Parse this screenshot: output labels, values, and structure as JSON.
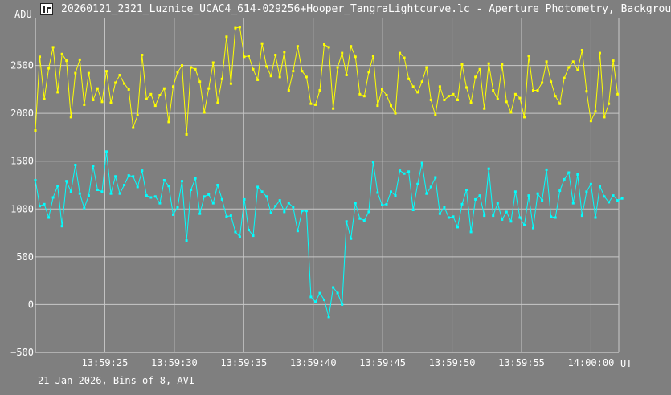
{
  "window": {
    "title": "20260121_2321_Luznice_UCAC4_614-029256+Hooper_TangraLightcurve.lc - Aperture Photometry, Backgrou",
    "icon": "lightcurve-app-icon"
  },
  "footer": {
    "text": "21 Jan 2026, Bins of 8, AVI"
  },
  "chart_data": {
    "type": "line",
    "yunit": "ADU",
    "xunit": "UT",
    "ylim": [
      -500,
      3000
    ],
    "xlim_seconds": [
      20.0,
      62.0
    ],
    "yticks": [
      {
        "value": -500,
        "label": "−500"
      },
      {
        "value": 0,
        "label": "0"
      },
      {
        "value": 500,
        "label": "500"
      },
      {
        "value": 1000,
        "label": "1000"
      },
      {
        "value": 1500,
        "label": "1500"
      },
      {
        "value": 2000,
        "label": "2000"
      },
      {
        "value": 2500,
        "label": "2500"
      }
    ],
    "xticks": [
      {
        "label": "13:59:25",
        "t": "13:59:25"
      },
      {
        "label": "13:59:30",
        "t": "13:59:30"
      },
      {
        "label": "13:59:35",
        "t": "13:59:35"
      },
      {
        "label": "13:59:40",
        "t": "13:59:40"
      },
      {
        "label": "13:59:45",
        "t": "13:59:45"
      },
      {
        "label": "13:59:50",
        "t": "13:59:50"
      },
      {
        "label": "13:59:55",
        "t": "13:59:55"
      },
      {
        "label": "14:00:00",
        "t": "14:00:00"
      }
    ],
    "grid": true,
    "series": [
      {
        "color": "#ffff00",
        "start_time": "13:59:20.0",
        "step_seconds": 0.32,
        "values": [
          1820,
          2590,
          2150,
          2470,
          2690,
          2220,
          2620,
          2550,
          1960,
          2420,
          2560,
          2090,
          2420,
          2140,
          2260,
          2120,
          2440,
          2110,
          2320,
          2400,
          2310,
          2250,
          1850,
          1980,
          2610,
          2150,
          2200,
          2080,
          2190,
          2260,
          1910,
          2280,
          2430,
          2500,
          1780,
          2480,
          2460,
          2330,
          2010,
          2260,
          2530,
          2110,
          2360,
          2800,
          2310,
          2890,
          2900,
          2590,
          2600,
          2460,
          2350,
          2730,
          2490,
          2390,
          2610,
          2380,
          2640,
          2240,
          2440,
          2700,
          2440,
          2380,
          2100,
          2090,
          2240,
          2720,
          2690,
          2050,
          2480,
          2630,
          2400,
          2700,
          2590,
          2200,
          2180,
          2430,
          2600,
          2080,
          2250,
          2190,
          2080,
          2000,
          2630,
          2580,
          2360,
          2280,
          2220,
          2330,
          2480,
          2140,
          1980,
          2280,
          2140,
          2180,
          2200,
          2140,
          2510,
          2270,
          2110,
          2380,
          2460,
          2050,
          2520,
          2240,
          2150,
          2510,
          2120,
          2010,
          2200,
          2160,
          1960,
          2600,
          2240,
          2240,
          2320,
          2540,
          2330,
          2180,
          2100,
          2370,
          2480,
          2540,
          2450,
          2660,
          2230,
          1920,
          2020,
          2630,
          1960,
          2100,
          2550,
          2200
        ]
      },
      {
        "color": "#00ffff",
        "start_time": "13:59:20.0",
        "step_seconds": 0.32,
        "values": [
          1300,
          1030,
          1050,
          910,
          1120,
          1240,
          820,
          1290,
          1180,
          1460,
          1160,
          1010,
          1140,
          1450,
          1200,
          1180,
          1600,
          1160,
          1340,
          1160,
          1250,
          1350,
          1340,
          1230,
          1400,
          1140,
          1120,
          1130,
          1060,
          1300,
          1240,
          940,
          1020,
          1290,
          670,
          1200,
          1320,
          950,
          1130,
          1150,
          1060,
          1250,
          1100,
          920,
          930,
          760,
          710,
          1100,
          780,
          720,
          1230,
          1180,
          1130,
          960,
          1030,
          1090,
          970,
          1060,
          1020,
          770,
          980,
          980,
          80,
          30,
          120,
          50,
          -130,
          180,
          120,
          0,
          870,
          690,
          1060,
          900,
          880,
          970,
          1490,
          1170,
          1040,
          1050,
          1180,
          1140,
          1400,
          1370,
          1390,
          990,
          1260,
          1480,
          1160,
          1230,
          1330,
          950,
          1020,
          910,
          920,
          810,
          1050,
          1200,
          760,
          1100,
          1140,
          930,
          1420,
          930,
          1060,
          890,
          970,
          870,
          1180,
          910,
          830,
          1140,
          800,
          1160,
          1090,
          1410,
          920,
          910,
          1190,
          1310,
          1380,
          1060,
          1360,
          930,
          1180,
          1260,
          910,
          1240,
          1130,
          1070,
          1140,
          1090,
          1110
        ]
      }
    ]
  }
}
